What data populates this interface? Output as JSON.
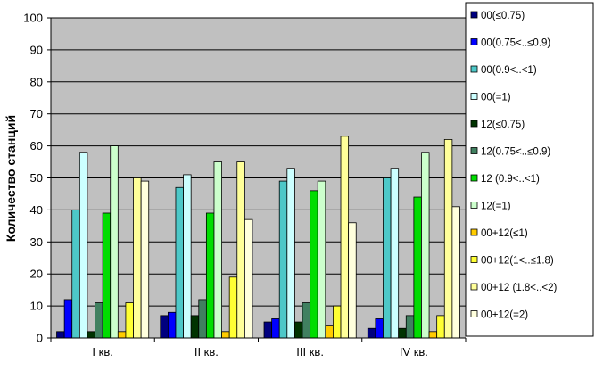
{
  "chart_data": {
    "type": "bar",
    "ylabel": "Количество станций",
    "xlabel": "",
    "title": "",
    "ylim": [
      0,
      100
    ],
    "yticks": [
      0,
      10,
      20,
      30,
      40,
      50,
      60,
      70,
      80,
      90,
      100
    ],
    "grid": true,
    "legend_position": "right",
    "plot_background": "#c0c0c0",
    "categories": [
      "I кв.",
      "II кв.",
      "III кв.",
      "IV кв."
    ],
    "series": [
      {
        "name": "00(≤0.75)",
        "color": "#00007f",
        "values": [
          2,
          7,
          5,
          3
        ]
      },
      {
        "name": "00(0.75<..≤0.9)",
        "color": "#0000ff",
        "values": [
          12,
          8,
          6,
          6
        ]
      },
      {
        "name": "00(0.9<..<1)",
        "color": "#4dc8c8",
        "values": [
          40,
          47,
          49,
          50
        ]
      },
      {
        "name": "00(=1)",
        "color": "#ccffff",
        "values": [
          58,
          51,
          53,
          53
        ]
      },
      {
        "name": "12(≤0.75)",
        "color": "#003300",
        "values": [
          2,
          7,
          5,
          3
        ]
      },
      {
        "name": "12(0.75<..≤0.9)",
        "color": "#408060",
        "values": [
          11,
          12,
          11,
          7
        ]
      },
      {
        "name": "12 (0.9<..<1)",
        "color": "#00dd00",
        "values": [
          39,
          39,
          46,
          44
        ]
      },
      {
        "name": "12(=1)",
        "color": "#ccffcc",
        "values": [
          60,
          55,
          49,
          58
        ]
      },
      {
        "name": "00+12(≤1)",
        "color": "#ffcc00",
        "values": [
          2,
          2,
          4,
          2
        ]
      },
      {
        "name": "00+12(1<..≤1.8)",
        "color": "#ffff33",
        "values": [
          11,
          19,
          10,
          7
        ]
      },
      {
        "name": "00+12 (1.8<..<2)",
        "color": "#ffff99",
        "values": [
          50,
          55,
          63,
          62
        ]
      },
      {
        "name": "00+12(=2)",
        "color": "#ffffdd",
        "values": [
          49,
          37,
          36,
          41
        ]
      }
    ]
  }
}
